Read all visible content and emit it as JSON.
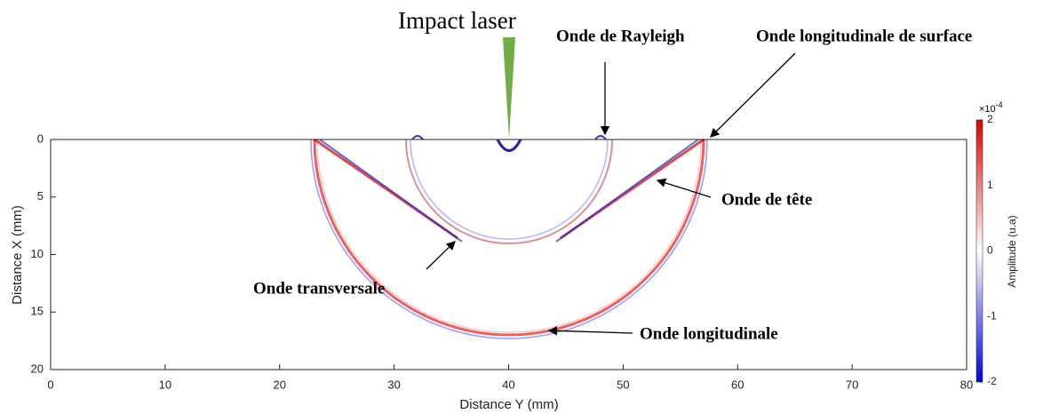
{
  "chart_data": {
    "type": "image",
    "xlabel": "Distance Y (mm)",
    "ylabel": "Distance X (mm)",
    "xlim": [
      0,
      80
    ],
    "xticks": [
      0,
      10,
      20,
      30,
      40,
      50,
      60,
      70,
      80
    ],
    "ylim": [
      20,
      0
    ],
    "yticks": [
      0,
      5,
      10,
      15,
      20
    ],
    "colorbar": {
      "label": "Amplitude (u.a)",
      "clim": [
        -2,
        2
      ],
      "ticks": [
        -2,
        -1,
        0,
        1,
        2
      ],
      "scale_base": "×10",
      "scale_exponent": "-4",
      "colors": [
        "#0000e0",
        "#ffffff",
        "#e00000"
      ]
    },
    "annotations": [
      {
        "text": "Impact laser",
        "color": "#70ad47"
      },
      {
        "text": "Onde de Rayleigh",
        "color": "#000000"
      },
      {
        "text": "Onde longitudinale de surface",
        "color": "#000000"
      },
      {
        "text": "Onde de tête",
        "color": "#000000"
      },
      {
        "text": "Onde transversale",
        "color": "#000000"
      },
      {
        "text": "Onde longitudinale",
        "color": "#000000"
      }
    ]
  }
}
